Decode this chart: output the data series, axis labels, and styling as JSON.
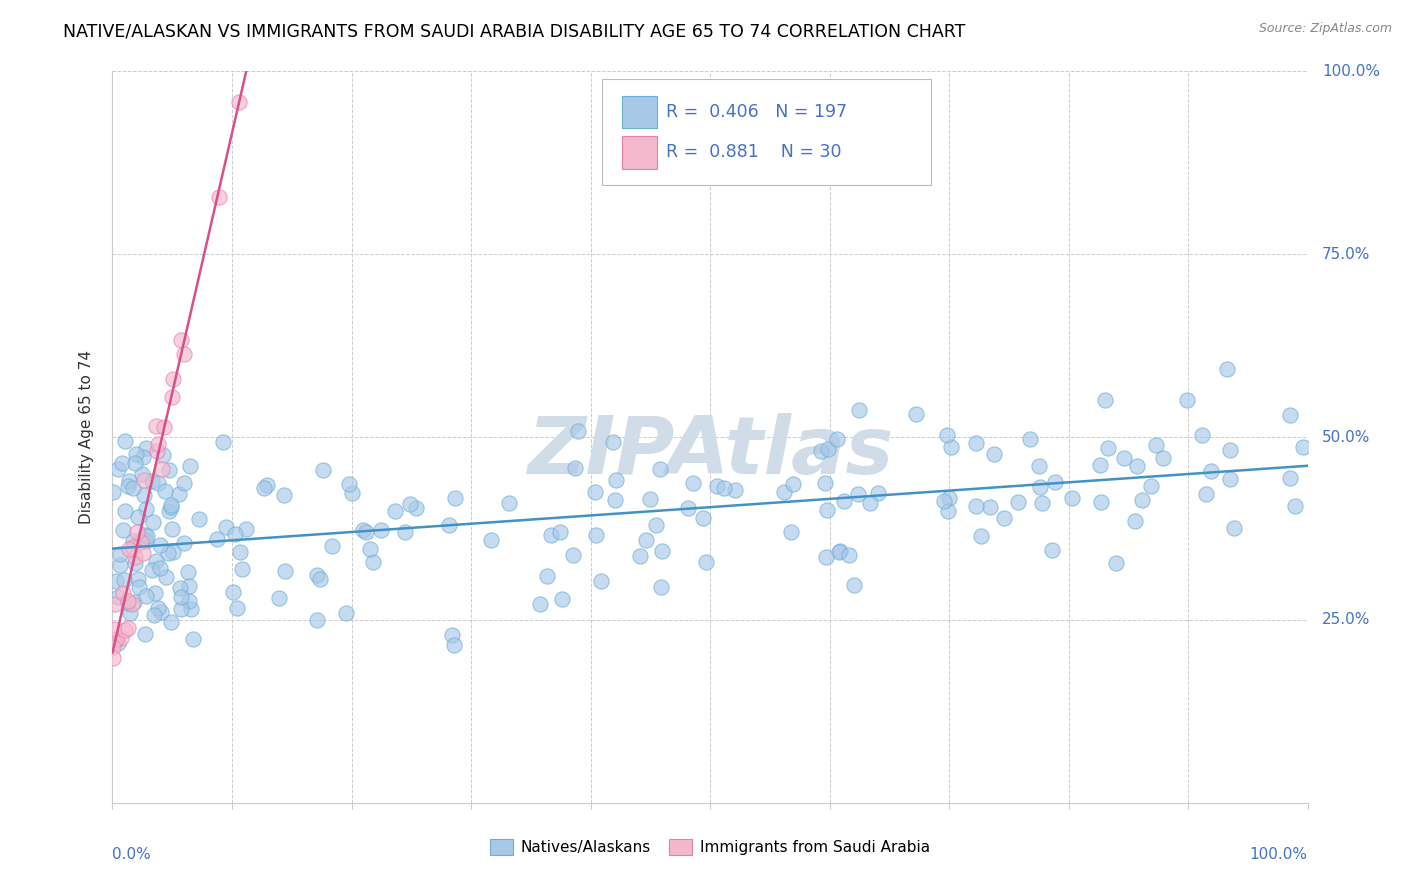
{
  "title": "NATIVE/ALASKAN VS IMMIGRANTS FROM SAUDI ARABIA DISABILITY AGE 65 TO 74 CORRELATION CHART",
  "source": "Source: ZipAtlas.com",
  "legend_label_blue": "Natives/Alaskans",
  "legend_label_pink": "Immigrants from Saudi Arabia",
  "ylabel": "Disability Age 65 to 74",
  "r_blue": 0.406,
  "n_blue": 197,
  "r_pink": 0.881,
  "n_pink": 30,
  "blue_color": "#a8c8e8",
  "blue_edge_color": "#6baed6",
  "pink_color": "#f4b8cc",
  "pink_edge_color": "#e87fa8",
  "blue_line_color": "#4292c6",
  "pink_line_color": "#d94f8a",
  "background_color": "#ffffff",
  "title_fontsize": 12.5,
  "axis_label_fontsize": 11,
  "tick_fontsize": 11,
  "watermark_color": "#d0dce8",
  "seed_blue": 123,
  "seed_pink": 55
}
